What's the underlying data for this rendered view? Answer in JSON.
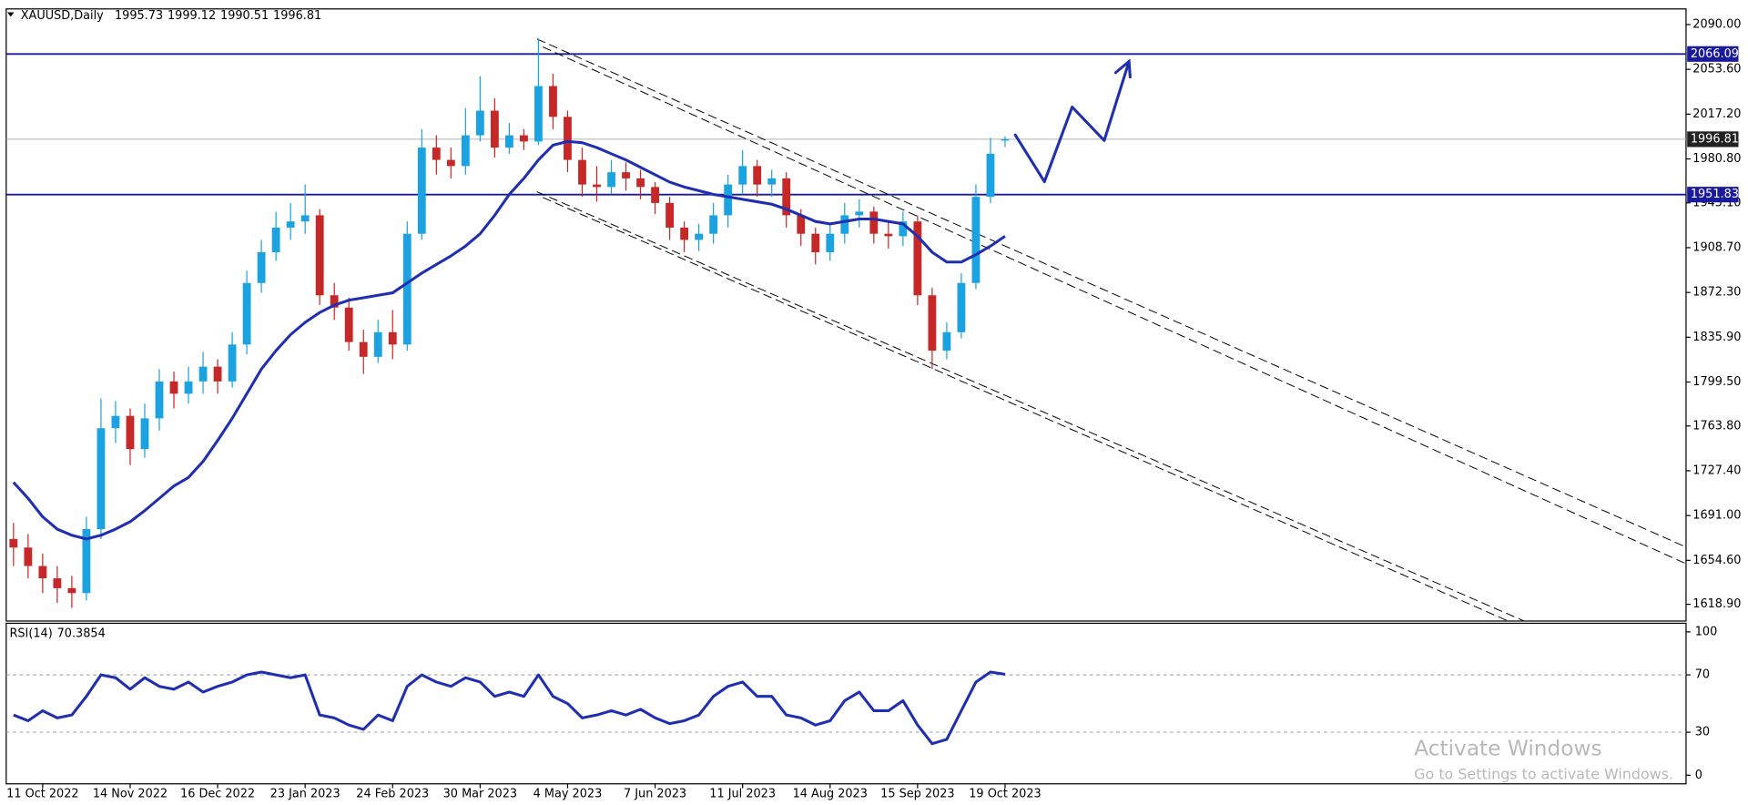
{
  "chart_data": [
    {
      "type": "candlestick",
      "symbol": "XAUUSD,Daily",
      "xlim": [
        -0.5,
        114.7
      ],
      "xticks": [
        {
          "value": 2,
          "label": "11 Oct 2022"
        },
        {
          "value": 8,
          "label": "14 Nov 2022"
        },
        {
          "value": 14,
          "label": "16 Dec 2022"
        },
        {
          "value": 20,
          "label": "23 Jan 2023"
        },
        {
          "value": 26,
          "label": "24 Feb 2023"
        },
        {
          "value": 32,
          "label": "30 Mar 2023"
        },
        {
          "value": 38,
          "label": "4 May 2023"
        },
        {
          "value": 44,
          "label": "7 Jun 2023"
        },
        {
          "value": 50,
          "label": "11 Jul 2023"
        },
        {
          "value": 56,
          "label": "14 Aug 2023"
        },
        {
          "value": 62,
          "label": "15 Sep 2023"
        },
        {
          "value": 68,
          "label": "19 Oct 2023"
        }
      ],
      "ylim": [
        1605.3,
        2102.7
      ],
      "yticks": [
        {
          "value": 2090,
          "label": "2090.00"
        },
        {
          "value": 2053.6,
          "label": "2053.60"
        },
        {
          "value": 2017.2,
          "label": "2017.20"
        },
        {
          "value": 1980.8,
          "label": "1980.80"
        },
        {
          "value": 1945.1,
          "label": "1945.10"
        },
        {
          "value": 1908.7,
          "label": "1908.70"
        },
        {
          "value": 1872.3,
          "label": "1872.30"
        },
        {
          "value": 1835.9,
          "label": "1835.90"
        },
        {
          "value": 1799.5,
          "label": "1799.50"
        },
        {
          "value": 1763.8,
          "label": "1763.80"
        },
        {
          "value": 1727.4,
          "label": "1727.40"
        },
        {
          "value": 1691,
          "label": "1691.00"
        },
        {
          "value": 1654.6,
          "label": "1654.60"
        },
        {
          "value": 1618.9,
          "label": "1618.90"
        }
      ],
      "up_color": "#1aa3e0",
      "down_color": "#c62828",
      "open": [
        1672,
        1665,
        1650,
        1640,
        1632,
        1628,
        1680,
        1762,
        1772,
        1745,
        1770,
        1800,
        1790,
        1800,
        1812,
        1800,
        1830,
        1880,
        1905,
        1925,
        1930,
        1935,
        1870,
        1860,
        1832,
        1820,
        1840,
        1830,
        1920,
        1990,
        1980,
        1975,
        2000,
        2020,
        1990,
        2000,
        1995,
        2040,
        2015,
        1980,
        1960,
        1958,
        1970,
        1965,
        1958,
        1945,
        1925,
        1915,
        1920,
        1935,
        1960,
        1975,
        1960,
        1965,
        1935,
        1920,
        1905,
        1920,
        1935,
        1938,
        1920,
        1918,
        1930,
        1870,
        1825,
        1840,
        1880,
        1950,
        1995.73
      ],
      "high": [
        1685,
        1676,
        1660,
        1650,
        1642,
        1690,
        1786,
        1784,
        1778,
        1782,
        1810,
        1808,
        1812,
        1824,
        1818,
        1840,
        1890,
        1915,
        1938,
        1945,
        1960,
        1940,
        1880,
        1868,
        1842,
        1850,
        1858,
        1930,
        2005,
        2000,
        1990,
        2022,
        2048,
        2030,
        2010,
        2005,
        2079,
        2050,
        2020,
        1990,
        1975,
        1980,
        1978,
        1972,
        1962,
        1950,
        1930,
        1928,
        1945,
        1968,
        1988,
        1980,
        1972,
        1970,
        1940,
        1925,
        1928,
        1945,
        1948,
        1942,
        1930,
        1938,
        1935,
        1876,
        1848,
        1888,
        1960,
        1998,
        1999.12
      ],
      "low": [
        1650,
        1640,
        1628,
        1620,
        1616,
        1622,
        1672,
        1750,
        1732,
        1738,
        1760,
        1778,
        1782,
        1790,
        1790,
        1795,
        1822,
        1872,
        1898,
        1915,
        1920,
        1862,
        1850,
        1825,
        1806,
        1815,
        1818,
        1825,
        1915,
        1968,
        1965,
        1968,
        1995,
        1982,
        1985,
        1988,
        1992,
        2005,
        1970,
        1950,
        1946,
        1952,
        1955,
        1948,
        1936,
        1915,
        1905,
        1906,
        1912,
        1925,
        1952,
        1950,
        1950,
        1925,
        1910,
        1895,
        1898,
        1912,
        1925,
        1912,
        1908,
        1910,
        1862,
        1810,
        1818,
        1835,
        1875,
        1945,
        1990.51
      ],
      "close": [
        1665,
        1650,
        1640,
        1632,
        1628,
        1680,
        1762,
        1772,
        1745,
        1770,
        1800,
        1790,
        1800,
        1812,
        1800,
        1830,
        1880,
        1905,
        1925,
        1930,
        1935,
        1870,
        1860,
        1832,
        1820,
        1840,
        1830,
        1920,
        1990,
        1980,
        1975,
        2000,
        2020,
        1990,
        2000,
        1995,
        2040,
        2015,
        1980,
        1960,
        1958,
        1970,
        1965,
        1958,
        1945,
        1925,
        1915,
        1920,
        1935,
        1960,
        1975,
        1960,
        1965,
        1935,
        1920,
        1905,
        1920,
        1935,
        1938,
        1920,
        1918,
        1930,
        1870,
        1825,
        1840,
        1880,
        1950,
        1985,
        1996.81
      ],
      "moving_average": {
        "color": "#1f2fb0",
        "values": [
          1718,
          1705,
          1690,
          1680,
          1675,
          1672,
          1675,
          1680,
          1686,
          1695,
          1705,
          1715,
          1722,
          1735,
          1752,
          1770,
          1790,
          1810,
          1825,
          1838,
          1848,
          1856,
          1862,
          1866,
          1868,
          1870,
          1872,
          1880,
          1888,
          1895,
          1902,
          1910,
          1920,
          1935,
          1952,
          1965,
          1980,
          1992,
          1995,
          1994,
          1990,
          1985,
          1980,
          1974,
          1968,
          1962,
          1958,
          1955,
          1952,
          1950,
          1948,
          1946,
          1944,
          1940,
          1935,
          1930,
          1928,
          1930,
          1932,
          1932,
          1930,
          1928,
          1918,
          1905,
          1897,
          1897,
          1903,
          1910,
          1918
        ]
      },
      "hlines": [
        {
          "value": 2066.09,
          "color": "#1a1a9c"
        },
        {
          "value": 1951.83,
          "color": "#1a1a9c"
        }
      ],
      "trendlines": [
        {
          "x": [
            35.9,
            115.1
          ],
          "y": [
            2078.2,
            1663.3
          ]
        },
        {
          "x": [
            36.3,
            115.1
          ],
          "y": [
            2071.8,
            1649.7
          ]
        },
        {
          "x": [
            35.9,
            103.6
          ],
          "y": [
            1954.1,
            1605.3
          ]
        },
        {
          "x": [
            36.3,
            102.5
          ],
          "y": [
            1949.5,
            1605.3
          ]
        }
      ],
      "forecast": {
        "color": "#1f2fb0",
        "x": [
          68.7,
          70.7,
          72.6,
          74.8,
          76.5
        ],
        "y": [
          2000.3,
          1962.3,
          2023,
          1995.8,
          2060
        ]
      }
    },
    {
      "type": "line",
      "title": "RSI(14)",
      "color": "#1f2fb0",
      "xlim": [
        -0.5,
        114.7
      ],
      "ylim": [
        -6,
        106
      ],
      "yticks": [
        100,
        70,
        30,
        0
      ],
      "levels": [
        70,
        30
      ],
      "values": [
        42,
        38,
        45,
        40,
        42,
        55,
        70,
        68,
        60,
        68,
        62,
        60,
        65,
        58,
        62,
        65,
        70,
        72,
        70,
        68,
        70,
        42,
        40,
        35,
        32,
        42,
        38,
        62,
        70,
        65,
        62,
        68,
        65,
        55,
        58,
        55,
        70,
        55,
        50,
        40,
        42,
        45,
        42,
        46,
        40,
        36,
        38,
        42,
        55,
        62,
        65,
        55,
        55,
        42,
        40,
        35,
        38,
        52,
        58,
        45,
        45,
        52,
        35,
        22,
        25,
        45,
        65,
        72,
        70.3854
      ]
    }
  ],
  "watermark": {
    "title": "Activate Windows",
    "subtitle": "Go to Settings to activate Windows."
  }
}
